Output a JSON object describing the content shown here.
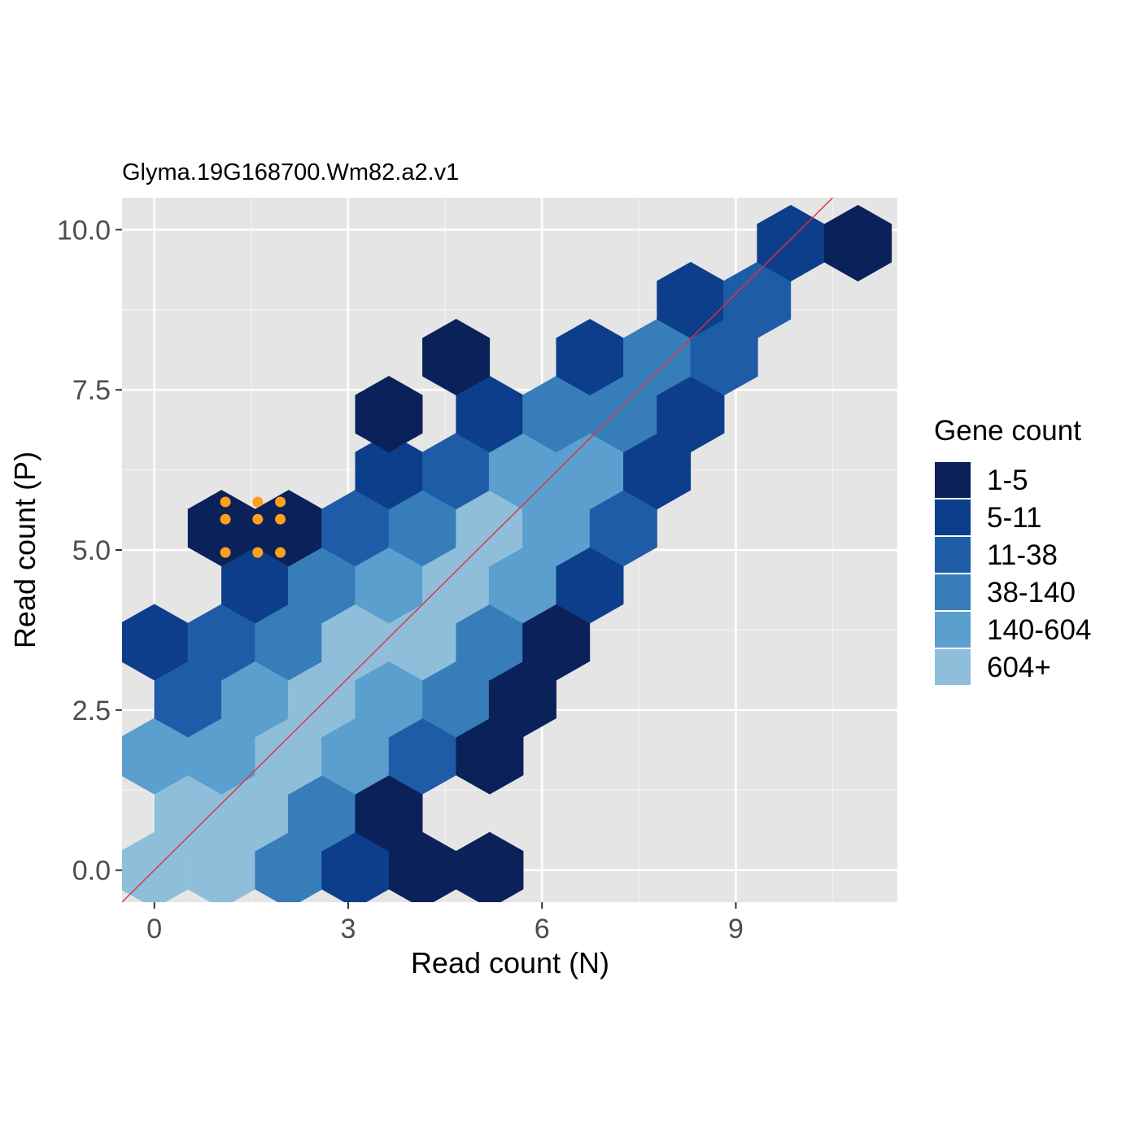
{
  "chart_data": {
    "type": "hexbin",
    "title": "Glyma.19G168700.Wm82.a2.v1",
    "xlabel": "Read count (N)",
    "ylabel": "Read count (P)",
    "xlim": [
      -0.5,
      11.5
    ],
    "ylim": [
      -0.5,
      10.5
    ],
    "x_ticks": [
      {
        "value": 0,
        "label": "0"
      },
      {
        "value": 3,
        "label": "3"
      },
      {
        "value": 6,
        "label": "6"
      },
      {
        "value": 9,
        "label": "9"
      }
    ],
    "y_ticks": [
      {
        "value": 0.0,
        "label": "0.0"
      },
      {
        "value": 2.5,
        "label": "2.5"
      },
      {
        "value": 5.0,
        "label": "5.0"
      },
      {
        "value": 7.5,
        "label": "7.5"
      },
      {
        "value": 10.0,
        "label": "10.0"
      }
    ],
    "grid": true,
    "panel_background": "#e5e5e5",
    "legend": {
      "title": "Gene count",
      "position": "right",
      "entries": [
        {
          "label": "1-5",
          "color": "#0b2159"
        },
        {
          "label": "5-11",
          "color": "#0c3e8b"
        },
        {
          "label": "11-38",
          "color": "#1f5ca8"
        },
        {
          "label": "38-140",
          "color": "#377dba"
        },
        {
          "label": "140-604",
          "color": "#5a9fcd"
        },
        {
          "label": "604+",
          "color": "#8fbedb"
        }
      ]
    },
    "hexbins": [
      {
        "x": 0.0,
        "y": 0.0,
        "bin": "604+"
      },
      {
        "x": 1.04,
        "y": 0.0,
        "bin": "604+"
      },
      {
        "x": 2.08,
        "y": 0.0,
        "bin": "38-140"
      },
      {
        "x": 3.11,
        "y": 0.0,
        "bin": "5-11"
      },
      {
        "x": 4.15,
        "y": 0.0,
        "bin": "1-5"
      },
      {
        "x": 5.19,
        "y": 0.0,
        "bin": "1-5"
      },
      {
        "x": 0.52,
        "y": 0.89,
        "bin": "604+"
      },
      {
        "x": 1.56,
        "y": 0.89,
        "bin": "604+"
      },
      {
        "x": 2.59,
        "y": 0.89,
        "bin": "38-140"
      },
      {
        "x": 3.63,
        "y": 0.89,
        "bin": "1-5"
      },
      {
        "x": 0.0,
        "y": 1.78,
        "bin": "140-604"
      },
      {
        "x": 1.04,
        "y": 1.78,
        "bin": "140-604"
      },
      {
        "x": 2.08,
        "y": 1.78,
        "bin": "604+"
      },
      {
        "x": 3.11,
        "y": 1.78,
        "bin": "140-604"
      },
      {
        "x": 4.15,
        "y": 1.78,
        "bin": "11-38"
      },
      {
        "x": 5.19,
        "y": 1.78,
        "bin": "1-5"
      },
      {
        "x": 0.52,
        "y": 2.67,
        "bin": "11-38"
      },
      {
        "x": 1.56,
        "y": 2.67,
        "bin": "140-604"
      },
      {
        "x": 2.59,
        "y": 2.67,
        "bin": "604+"
      },
      {
        "x": 3.63,
        "y": 2.67,
        "bin": "140-604"
      },
      {
        "x": 4.67,
        "y": 2.67,
        "bin": "38-140"
      },
      {
        "x": 5.7,
        "y": 2.67,
        "bin": "1-5"
      },
      {
        "x": 0.0,
        "y": 3.56,
        "bin": "5-11"
      },
      {
        "x": 1.04,
        "y": 3.56,
        "bin": "11-38"
      },
      {
        "x": 2.08,
        "y": 3.56,
        "bin": "38-140"
      },
      {
        "x": 3.11,
        "y": 3.56,
        "bin": "604+"
      },
      {
        "x": 4.15,
        "y": 3.56,
        "bin": "604+"
      },
      {
        "x": 5.19,
        "y": 3.56,
        "bin": "38-140"
      },
      {
        "x": 6.22,
        "y": 3.56,
        "bin": "1-5"
      },
      {
        "x": 1.56,
        "y": 4.45,
        "bin": "5-11"
      },
      {
        "x": 2.59,
        "y": 4.45,
        "bin": "38-140"
      },
      {
        "x": 3.63,
        "y": 4.45,
        "bin": "140-604"
      },
      {
        "x": 4.67,
        "y": 4.45,
        "bin": "604+"
      },
      {
        "x": 5.7,
        "y": 4.45,
        "bin": "140-604"
      },
      {
        "x": 6.74,
        "y": 4.45,
        "bin": "5-11"
      },
      {
        "x": 1.04,
        "y": 5.34,
        "bin": "1-5"
      },
      {
        "x": 2.08,
        "y": 5.34,
        "bin": "1-5"
      },
      {
        "x": 3.11,
        "y": 5.34,
        "bin": "11-38"
      },
      {
        "x": 4.15,
        "y": 5.34,
        "bin": "38-140"
      },
      {
        "x": 5.19,
        "y": 5.34,
        "bin": "604+"
      },
      {
        "x": 6.22,
        "y": 5.34,
        "bin": "140-604"
      },
      {
        "x": 7.26,
        "y": 5.34,
        "bin": "11-38"
      },
      {
        "x": 3.63,
        "y": 6.23,
        "bin": "5-11"
      },
      {
        "x": 4.67,
        "y": 6.23,
        "bin": "11-38"
      },
      {
        "x": 5.7,
        "y": 6.23,
        "bin": "140-604"
      },
      {
        "x": 6.74,
        "y": 6.23,
        "bin": "140-604"
      },
      {
        "x": 7.78,
        "y": 6.23,
        "bin": "5-11"
      },
      {
        "x": 3.63,
        "y": 7.12,
        "bin": "1-5"
      },
      {
        "x": 5.19,
        "y": 7.12,
        "bin": "5-11"
      },
      {
        "x": 6.22,
        "y": 7.12,
        "bin": "38-140"
      },
      {
        "x": 7.26,
        "y": 7.12,
        "bin": "38-140"
      },
      {
        "x": 8.3,
        "y": 7.12,
        "bin": "5-11"
      },
      {
        "x": 4.67,
        "y": 8.01,
        "bin": "1-5"
      },
      {
        "x": 6.74,
        "y": 8.01,
        "bin": "5-11"
      },
      {
        "x": 7.78,
        "y": 8.01,
        "bin": "38-140"
      },
      {
        "x": 8.82,
        "y": 8.01,
        "bin": "11-38"
      },
      {
        "x": 8.3,
        "y": 8.9,
        "bin": "5-11"
      },
      {
        "x": 9.33,
        "y": 8.9,
        "bin": "11-38"
      },
      {
        "x": 9.85,
        "y": 9.79,
        "bin": "5-11"
      },
      {
        "x": 10.89,
        "y": 9.79,
        "bin": "1-5"
      }
    ],
    "reference_line": {
      "slope": 1,
      "intercept": 0,
      "color": "#e0323c"
    },
    "highlight_points": {
      "color": "#ff9f1a",
      "points": [
        {
          "x": 1.1,
          "y": 5.75
        },
        {
          "x": 1.6,
          "y": 5.75
        },
        {
          "x": 1.95,
          "y": 5.75
        },
        {
          "x": 1.1,
          "y": 5.48
        },
        {
          "x": 1.6,
          "y": 5.48
        },
        {
          "x": 1.95,
          "y": 5.48
        },
        {
          "x": 1.1,
          "y": 4.96
        },
        {
          "x": 1.6,
          "y": 4.96
        },
        {
          "x": 1.95,
          "y": 4.96
        }
      ]
    }
  }
}
